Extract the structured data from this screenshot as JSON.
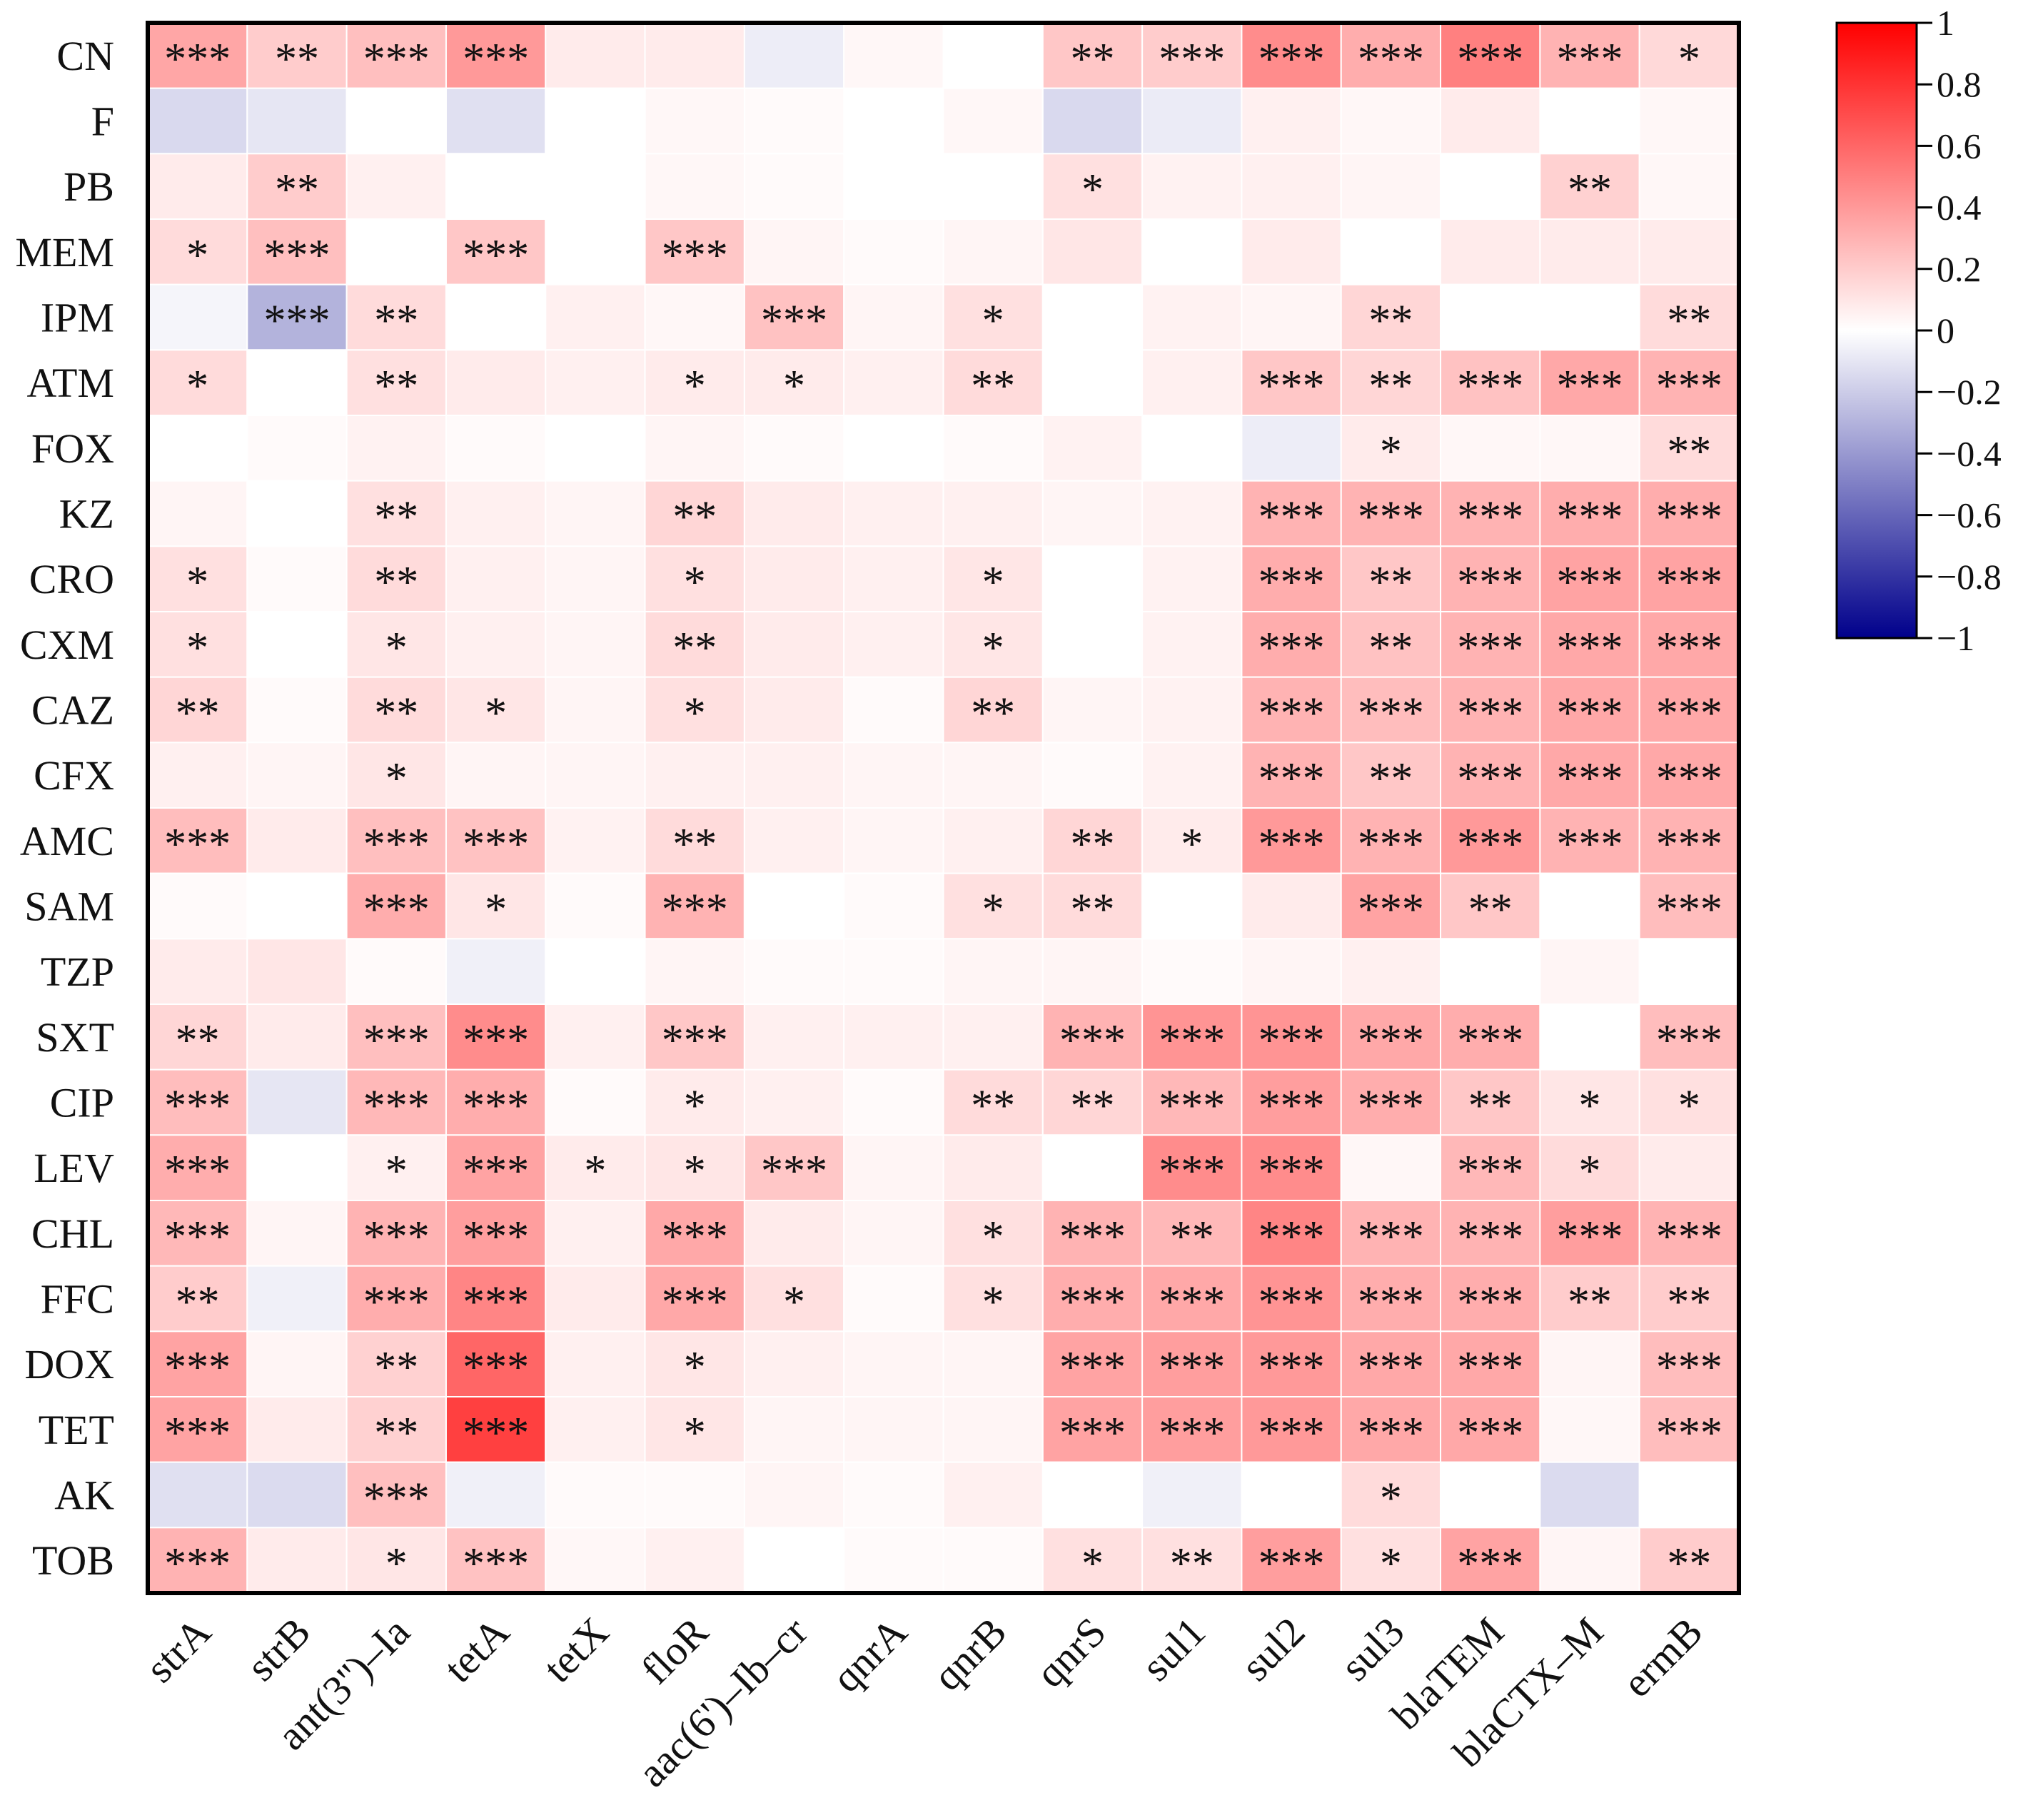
{
  "chart_data": {
    "type": "heatmap",
    "title": "",
    "xlabel": "",
    "ylabel": "",
    "rows": [
      "CN",
      "F",
      "PB",
      "MEM",
      "IPM",
      "ATM",
      "FOX",
      "KZ",
      "CRO",
      "CXM",
      "CAZ",
      "CFX",
      "AMC",
      "SAM",
      "TZP",
      "SXT",
      "CIP",
      "LEV",
      "CHL",
      "FFC",
      "DOX",
      "TET",
      "AK",
      "TOB"
    ],
    "columns": [
      "strA",
      "strB",
      "ant(3'')–Ia",
      "tetA",
      "tetX",
      "floR",
      "aac(6')–Ib–cr",
      "qnrA",
      "qnrB",
      "qnrS",
      "sul1",
      "sul2",
      "sul3",
      "blaTEM",
      "blaCTX–M",
      "ermB"
    ],
    "values": [
      [
        0.35,
        0.2,
        0.25,
        0.4,
        0.08,
        0.08,
        -0.07,
        0.03,
        0.0,
        0.22,
        0.2,
        0.45,
        0.32,
        0.5,
        0.3,
        0.15
      ],
      [
        -0.15,
        -0.1,
        0.0,
        -0.12,
        0.0,
        0.03,
        0.02,
        0.0,
        0.03,
        -0.15,
        -0.08,
        0.06,
        0.03,
        0.08,
        0.0,
        0.03
      ],
      [
        0.08,
        0.2,
        0.06,
        0.0,
        0.0,
        0.03,
        0.02,
        0.0,
        0.0,
        0.12,
        0.05,
        0.06,
        0.04,
        0.0,
        0.18,
        0.03
      ],
      [
        0.14,
        0.25,
        0.0,
        0.22,
        0.0,
        0.22,
        0.04,
        0.02,
        0.04,
        0.1,
        0.0,
        0.08,
        0.0,
        0.08,
        0.08,
        0.08
      ],
      [
        -0.04,
        -0.3,
        0.14,
        0.0,
        0.06,
        0.03,
        0.24,
        0.04,
        0.12,
        0.0,
        0.05,
        0.04,
        0.16,
        0.0,
        0.0,
        0.14
      ],
      [
        0.14,
        0.0,
        0.12,
        0.08,
        0.06,
        0.08,
        0.08,
        0.06,
        0.14,
        0.0,
        0.06,
        0.22,
        0.16,
        0.24,
        0.34,
        0.3
      ],
      [
        0.0,
        0.02,
        0.05,
        0.02,
        0.0,
        0.04,
        0.02,
        0.0,
        0.02,
        0.05,
        0.0,
        -0.07,
        0.08,
        0.03,
        0.03,
        0.14
      ],
      [
        0.04,
        0.0,
        0.12,
        0.06,
        0.04,
        0.16,
        0.08,
        0.06,
        0.06,
        0.04,
        0.05,
        0.3,
        0.3,
        0.3,
        0.32,
        0.32
      ],
      [
        0.12,
        0.02,
        0.14,
        0.06,
        0.04,
        0.12,
        0.08,
        0.06,
        0.1,
        0.0,
        0.05,
        0.32,
        0.22,
        0.3,
        0.36,
        0.36
      ],
      [
        0.12,
        0.0,
        0.1,
        0.06,
        0.04,
        0.14,
        0.08,
        0.06,
        0.1,
        0.0,
        0.05,
        0.32,
        0.24,
        0.3,
        0.34,
        0.34
      ],
      [
        0.16,
        0.02,
        0.14,
        0.1,
        0.04,
        0.12,
        0.08,
        0.02,
        0.16,
        0.04,
        0.05,
        0.3,
        0.26,
        0.3,
        0.34,
        0.34
      ],
      [
        0.06,
        0.04,
        0.1,
        0.04,
        0.04,
        0.06,
        0.06,
        0.04,
        0.04,
        0.02,
        0.05,
        0.3,
        0.22,
        0.3,
        0.34,
        0.34
      ],
      [
        0.26,
        0.08,
        0.25,
        0.24,
        0.05,
        0.14,
        0.06,
        0.04,
        0.06,
        0.16,
        0.08,
        0.4,
        0.3,
        0.4,
        0.3,
        0.3
      ],
      [
        0.02,
        0.0,
        0.32,
        0.1,
        0.02,
        0.3,
        0.0,
        0.02,
        0.12,
        0.14,
        0.0,
        0.08,
        0.36,
        0.22,
        0.0,
        0.26
      ],
      [
        0.08,
        0.1,
        0.02,
        -0.06,
        0.0,
        0.04,
        0.02,
        0.02,
        0.04,
        0.04,
        0.02,
        0.04,
        0.06,
        0.0,
        0.04,
        0.0
      ],
      [
        0.16,
        0.08,
        0.25,
        0.45,
        0.06,
        0.22,
        0.06,
        0.06,
        0.06,
        0.3,
        0.42,
        0.42,
        0.34,
        0.32,
        0.0,
        0.26
      ],
      [
        0.26,
        -0.1,
        0.28,
        0.32,
        0.02,
        0.08,
        0.06,
        0.02,
        0.14,
        0.16,
        0.28,
        0.38,
        0.32,
        0.22,
        0.1,
        0.12
      ],
      [
        0.32,
        0.0,
        0.06,
        0.36,
        0.08,
        0.1,
        0.22,
        0.04,
        0.08,
        0.0,
        0.45,
        0.45,
        0.03,
        0.28,
        0.14,
        0.08
      ],
      [
        0.28,
        0.04,
        0.3,
        0.38,
        0.06,
        0.34,
        0.08,
        0.04,
        0.12,
        0.3,
        0.28,
        0.48,
        0.3,
        0.3,
        0.38,
        0.3
      ],
      [
        0.2,
        -0.06,
        0.32,
        0.48,
        0.08,
        0.34,
        0.12,
        0.02,
        0.12,
        0.32,
        0.34,
        0.42,
        0.32,
        0.32,
        0.2,
        0.2
      ],
      [
        0.36,
        0.04,
        0.18,
        0.6,
        0.06,
        0.1,
        0.06,
        0.04,
        0.04,
        0.36,
        0.38,
        0.4,
        0.34,
        0.34,
        0.04,
        0.26
      ],
      [
        0.36,
        0.08,
        0.18,
        0.75,
        0.06,
        0.1,
        0.04,
        0.04,
        0.04,
        0.36,
        0.38,
        0.4,
        0.34,
        0.34,
        0.03,
        0.26
      ],
      [
        -0.12,
        -0.14,
        0.25,
        -0.06,
        0.02,
        0.02,
        0.04,
        0.02,
        0.06,
        0.0,
        -0.06,
        0.0,
        0.14,
        0.0,
        -0.14,
        0.0
      ],
      [
        0.3,
        0.08,
        0.1,
        0.24,
        0.03,
        0.06,
        0.0,
        0.02,
        0.02,
        0.12,
        0.12,
        0.38,
        0.12,
        0.36,
        0.04,
        0.2
      ]
    ],
    "significance": [
      [
        "***",
        "**",
        "***",
        "***",
        "",
        "",
        "",
        "",
        "",
        "**",
        "***",
        "***",
        "***",
        "***",
        "***",
        "*"
      ],
      [
        "",
        "",
        "",
        "",
        "",
        "",
        "",
        "",
        "",
        "",
        "",
        "",
        "",
        "",
        "",
        ""
      ],
      [
        "",
        "**",
        "",
        "",
        "",
        "",
        "",
        "",
        "",
        "*",
        "",
        "",
        "",
        "",
        "**",
        ""
      ],
      [
        "*",
        "***",
        "",
        "***",
        "",
        "***",
        "",
        "",
        "",
        "",
        "",
        "",
        "",
        "",
        "",
        ""
      ],
      [
        "",
        "***",
        "**",
        "",
        "",
        "",
        "***",
        "",
        "*",
        "",
        "",
        "",
        "**",
        "",
        "",
        "**"
      ],
      [
        "*",
        "",
        "**",
        "",
        "",
        "*",
        "*",
        "",
        "**",
        "",
        "",
        "***",
        "**",
        "***",
        "***",
        "***"
      ],
      [
        "",
        "",
        "",
        "",
        "",
        "",
        "",
        "",
        "",
        "",
        "",
        "",
        "*",
        "",
        "",
        "**"
      ],
      [
        "",
        "",
        "**",
        "",
        "",
        "**",
        "",
        "",
        "",
        "",
        "",
        "***",
        "***",
        "***",
        "***",
        "***"
      ],
      [
        "*",
        "",
        "**",
        "",
        "",
        "*",
        "",
        "",
        "*",
        "",
        "",
        "***",
        "**",
        "***",
        "***",
        "***"
      ],
      [
        "*",
        "",
        "*",
        "",
        "",
        "**",
        "",
        "",
        "*",
        "",
        "",
        "***",
        "**",
        "***",
        "***",
        "***"
      ],
      [
        "**",
        "",
        "**",
        "*",
        "",
        "*",
        "",
        "",
        "**",
        "",
        "",
        "***",
        "***",
        "***",
        "***",
        "***"
      ],
      [
        "",
        "",
        "*",
        "",
        "",
        "",
        "",
        "",
        "",
        "",
        "",
        "***",
        "**",
        "***",
        "***",
        "***"
      ],
      [
        "***",
        "",
        "***",
        "***",
        "",
        "**",
        "",
        "",
        "",
        "**",
        "*",
        "***",
        "***",
        "***",
        "***",
        "***"
      ],
      [
        "",
        "",
        "***",
        "*",
        "",
        "***",
        "",
        "",
        "*",
        "**",
        "",
        "",
        "***",
        "**",
        "",
        "***"
      ],
      [
        "",
        "",
        "",
        "",
        "",
        "",
        "",
        "",
        "",
        "",
        "",
        "",
        "",
        "",
        "",
        ""
      ],
      [
        "**",
        "",
        "***",
        "***",
        "",
        "***",
        "",
        "",
        "",
        "***",
        "***",
        "***",
        "***",
        "***",
        "",
        "***"
      ],
      [
        "***",
        "",
        "***",
        "***",
        "",
        "*",
        "",
        "",
        "**",
        "**",
        "***",
        "***",
        "***",
        "**",
        "*",
        "*"
      ],
      [
        "***",
        "",
        "*",
        "***",
        "*",
        "*",
        "***",
        "",
        "",
        "",
        "***",
        "***",
        "",
        "***",
        "*",
        ""
      ],
      [
        "***",
        "",
        "***",
        "***",
        "",
        "***",
        "",
        "",
        "*",
        "***",
        "**",
        "***",
        "***",
        "***",
        "***",
        "***"
      ],
      [
        "**",
        "",
        "***",
        "***",
        "",
        "***",
        "*",
        "",
        "*",
        "***",
        "***",
        "***",
        "***",
        "***",
        "**",
        "**"
      ],
      [
        "***",
        "",
        "**",
        "***",
        "",
        "*",
        "",
        "",
        "",
        "***",
        "***",
        "***",
        "***",
        "***",
        "",
        "***"
      ],
      [
        "***",
        "",
        "**",
        "***",
        "",
        "*",
        "",
        "",
        "",
        "***",
        "***",
        "***",
        "***",
        "***",
        "",
        "***"
      ],
      [
        "",
        "",
        "***",
        "",
        "",
        "",
        "",
        "",
        "",
        "",
        "",
        "",
        "*",
        "",
        "",
        ""
      ],
      [
        "***",
        "",
        "*",
        "***",
        "",
        "",
        "",
        "",
        "",
        "*",
        "**",
        "***",
        "*",
        "***",
        "",
        "**"
      ]
    ],
    "colorbar": {
      "range": [
        -1,
        1
      ],
      "ticks": [
        "1",
        "0.8",
        "0.6",
        "0.4",
        "0.2",
        "0",
        "−0.2",
        "−0.4",
        "−0.6",
        "−0.8",
        "−1"
      ],
      "colors": {
        "low": "#00008b",
        "mid": "#ffffff",
        "high": "#ff0000"
      }
    },
    "legend_position": "right"
  }
}
